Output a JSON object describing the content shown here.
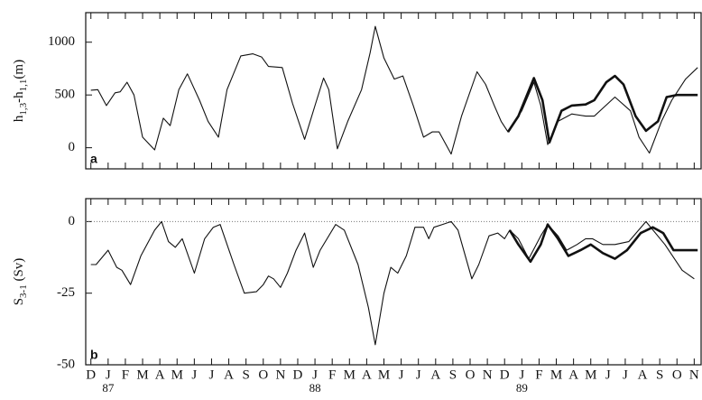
{
  "chart_data": [
    {
      "type": "line",
      "panel_label": "a",
      "ylabel": [
        "h",
        "1,3",
        "-h",
        "1,1",
        "(m)"
      ],
      "xlim": [
        -0.3,
        35.4
      ],
      "xticks": [
        0,
        1,
        2,
        3,
        4,
        5,
        6,
        7,
        8,
        9,
        10,
        11,
        12,
        13,
        14,
        15,
        16,
        17,
        18,
        19,
        20,
        21,
        22,
        23,
        24,
        25,
        26,
        27,
        28,
        29,
        30,
        31,
        32,
        33,
        34,
        35
      ],
      "ylim": [
        -200,
        1280
      ],
      "yticks": [
        0,
        500,
        1000
      ],
      "series": [
        {
          "color": "#111111",
          "linewidth": 1.1,
          "x": [
            0,
            0.4,
            0.9,
            1.4,
            1.7,
            2.1,
            2.5,
            3,
            3.7,
            4.2,
            4.6,
            5.1,
            5.6,
            6.3,
            6.8,
            7.4,
            7.9,
            8.7,
            9.4,
            9.9,
            10.3,
            11.1,
            11.7,
            12.4,
            13,
            13.5,
            13.8,
            14.3,
            14.9,
            15.7,
            16.2,
            16.5,
            17,
            17.6,
            18.1,
            18.7,
            19.3,
            19.8,
            20.2,
            20.9,
            21.5,
            22.4,
            22.9,
            23.4,
            23.8,
            24.2,
            25,
            25.7,
            26.1,
            26.5,
            27.1,
            27.9,
            28.7,
            29.2,
            30.4,
            31.3,
            31.8,
            32.4,
            33.1,
            33.7,
            34.5,
            35.2
          ],
          "values": [
            545,
            550,
            400,
            520,
            530,
            620,
            500,
            100,
            -20,
            280,
            210,
            550,
            700,
            450,
            250,
            100,
            550,
            870,
            890,
            860,
            770,
            760,
            420,
            80,
            400,
            660,
            550,
            -10,
            250,
            550,
            900,
            1150,
            850,
            650,
            680,
            400,
            100,
            150,
            150,
            -60,
            300,
            720,
            600,
            400,
            250,
            150,
            350,
            620,
            400,
            30,
            250,
            320,
            300,
            300,
            480,
            350,
            100,
            -50,
            250,
            450,
            650,
            760
          ]
        },
        {
          "color": "#111111",
          "linewidth": 2.6,
          "x": [
            24.2,
            24.8,
            25.7,
            26.2,
            26.6,
            27.3,
            27.9,
            28.7,
            29.2,
            29.9,
            30.4,
            30.9,
            31.6,
            32.2,
            32.9,
            33.4,
            34,
            35.2
          ],
          "values": [
            150,
            300,
            660,
            450,
            50,
            350,
            400,
            410,
            450,
            620,
            680,
            600,
            300,
            160,
            250,
            480,
            500,
            500
          ]
        }
      ]
    },
    {
      "type": "line",
      "panel_label": "b",
      "ylabel": [
        "S",
        "3-1",
        " (Sv)"
      ],
      "xlim": [
        -0.3,
        35.4
      ],
      "xticks": [
        {
          "value": 0,
          "label": "D"
        },
        {
          "value": 1,
          "label": "J"
        },
        {
          "value": 2,
          "label": "F"
        },
        {
          "value": 3,
          "label": "M"
        },
        {
          "value": 4,
          "label": "A"
        },
        {
          "value": 5,
          "label": "M"
        },
        {
          "value": 6,
          "label": "J"
        },
        {
          "value": 7,
          "label": "J"
        },
        {
          "value": 8,
          "label": "A"
        },
        {
          "value": 9,
          "label": "S"
        },
        {
          "value": 10,
          "label": "O"
        },
        {
          "value": 11,
          "label": "N"
        },
        {
          "value": 12,
          "label": "D"
        },
        {
          "value": 13,
          "label": "J"
        },
        {
          "value": 14,
          "label": "F"
        },
        {
          "value": 15,
          "label": "M"
        },
        {
          "value": 16,
          "label": "A"
        },
        {
          "value": 17,
          "label": "M"
        },
        {
          "value": 18,
          "label": "J"
        },
        {
          "value": 19,
          "label": "J"
        },
        {
          "value": 20,
          "label": "A"
        },
        {
          "value": 21,
          "label": "S"
        },
        {
          "value": 22,
          "label": "O"
        },
        {
          "value": 23,
          "label": "N"
        },
        {
          "value": 24,
          "label": "D"
        },
        {
          "value": 25,
          "label": "J"
        },
        {
          "value": 26,
          "label": "F"
        },
        {
          "value": 27,
          "label": "M"
        },
        {
          "value": 28,
          "label": "A"
        },
        {
          "value": 29,
          "label": "M"
        },
        {
          "value": 30,
          "label": "J"
        },
        {
          "value": 31,
          "label": "J"
        },
        {
          "value": 32,
          "label": "A"
        },
        {
          "value": 33,
          "label": "S"
        },
        {
          "value": 34,
          "label": "O"
        },
        {
          "value": 35,
          "label": "N"
        }
      ],
      "year_labels": [
        {
          "value": 1,
          "label": "87"
        },
        {
          "value": 13,
          "label": "88"
        },
        {
          "value": 25,
          "label": "89"
        }
      ],
      "ylim": [
        -50,
        8
      ],
      "yticks": [
        0,
        -25,
        -50
      ],
      "reference_line": 0,
      "series": [
        {
          "color": "#111111",
          "linewidth": 1.1,
          "x": [
            0,
            0.3,
            1,
            1.5,
            1.8,
            2.3,
            2.9,
            3.7,
            4.1,
            4.5,
            4.9,
            5.3,
            6,
            6.6,
            7.1,
            7.5,
            8.3,
            8.9,
            9.6,
            10,
            10.3,
            10.6,
            11,
            11.4,
            11.9,
            12.4,
            12.9,
            13.3,
            14.2,
            14.7,
            15.5,
            16.1,
            16.5,
            17,
            17.4,
            17.8,
            18.3,
            18.8,
            19.3,
            19.6,
            19.9,
            20.4,
            20.9,
            21.3,
            22.1,
            22.5,
            23.1,
            23.6,
            24,
            24.3,
            24.8,
            25.4,
            26.1,
            26.5,
            27.1,
            27.6,
            28.2,
            28.7,
            29.1,
            29.7,
            30.4,
            31.2,
            32.2,
            33.3,
            34.3,
            35
          ],
          "values": [
            -15,
            -15,
            -10,
            -16,
            -17,
            -22,
            -12,
            -3,
            0,
            -7,
            -9,
            -6,
            -18,
            -6,
            -2,
            -1,
            -15,
            -25,
            -24.5,
            -22,
            -19,
            -20,
            -23,
            -18,
            -10,
            -4,
            -16,
            -10,
            -1,
            -3,
            -15,
            -30,
            -43,
            -25,
            -16,
            -18,
            -12,
            -2,
            -2,
            -6,
            -2,
            -1,
            0,
            -3,
            -20,
            -15,
            -5,
            -4,
            -6,
            -3,
            -6,
            -13,
            -5,
            -1,
            -5,
            -10,
            -8,
            -6,
            -6,
            -8,
            -8,
            -7,
            0,
            -8,
            -17,
            -20
          ]
        },
        {
          "color": "#111111",
          "linewidth": 2.6,
          "x": [
            24.3,
            24.8,
            25.5,
            26.1,
            26.5,
            27.1,
            27.7,
            28.4,
            29,
            29.7,
            30.4,
            31.1,
            31.9,
            32.6,
            33.2,
            33.8,
            35.2
          ],
          "values": [
            -3,
            -8,
            -14,
            -8,
            -1,
            -6,
            -12,
            -10,
            -8,
            -11,
            -13,
            -10,
            -4,
            -2,
            -4,
            -10,
            -10
          ]
        }
      ]
    }
  ]
}
